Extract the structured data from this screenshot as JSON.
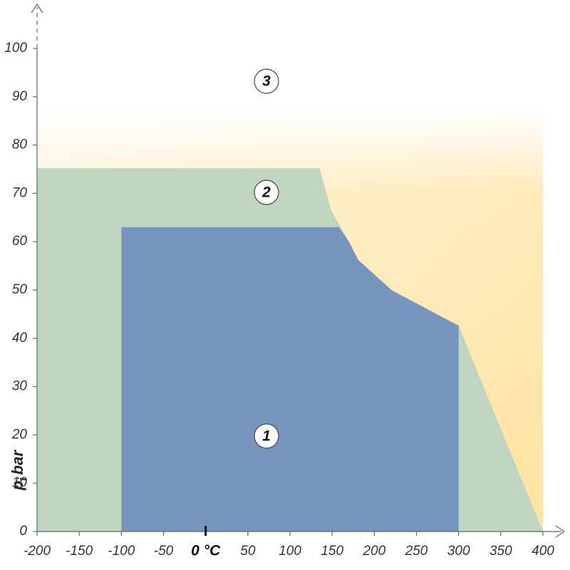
{
  "chart_data": {
    "type": "area",
    "ylabel": [
      "p",
      "i",
      "bar"
    ],
    "xlim": [
      -200,
      400
    ],
    "ylim": [
      0,
      100
    ],
    "xticks": [
      -200,
      -150,
      -100,
      -50,
      {
        "value": 0,
        "label": "0 °C"
      },
      50,
      100,
      150,
      200,
      250,
      300,
      350,
      400
    ],
    "yticks": [
      0,
      10,
      20,
      30,
      40,
      50,
      60,
      70,
      80,
      90,
      100
    ],
    "grid": false,
    "series": [
      {
        "name": "3",
        "color": "#fde3a0"
      },
      {
        "name": "2",
        "color": "#bfd5bf",
        "x": [
          -200,
          -200,
          135,
          149,
          160,
          170,
          181,
          221,
          300,
          400
        ],
        "values": [
          0,
          75.2,
          75.2,
          66.5,
          63,
          60,
          56.2,
          49.9,
          42.6,
          0
        ]
      },
      {
        "name": "1",
        "color": "#7794bc",
        "x": [
          -100,
          -100,
          158,
          170,
          181,
          221,
          300,
          300
        ],
        "values": [
          0,
          63,
          63,
          60,
          56.2,
          49.9,
          42.6,
          0
        ]
      }
    ]
  }
}
